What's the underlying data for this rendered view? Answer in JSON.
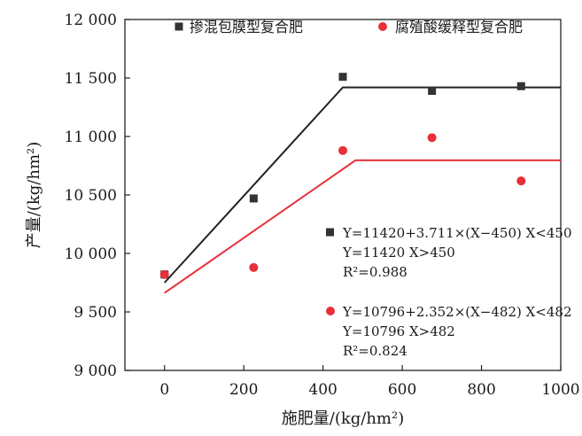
{
  "chart_data": {
    "type": "scatter",
    "xlabel": "施肥量/(kg/hm²)",
    "ylabel": "产量/(kg/hm²)",
    "xlim": [
      -100,
      1000
    ],
    "ylim": [
      9000,
      12000
    ],
    "x_ticks": [
      0,
      200,
      400,
      600,
      800,
      1000
    ],
    "y_ticks": [
      9000,
      9500,
      10000,
      10500,
      11000,
      11500,
      12000
    ],
    "x_tick_labels": [
      "0",
      "200",
      "400",
      "600",
      "800",
      "1000"
    ],
    "y_tick_labels": [
      "9 000",
      "9 500",
      "10 000",
      "10 500",
      "11 000",
      "11 500",
      "12 000"
    ],
    "grid": false,
    "legend_position": "top",
    "series": [
      {
        "name": "掺混包膜型复合肥",
        "marker": "square",
        "color": "#333333",
        "x": [
          0,
          225,
          450,
          675,
          900
        ],
        "y": [
          9820,
          10470,
          11510,
          11390,
          11430
        ],
        "fit": {
          "type": "linear-plateau",
          "slope": 3.711,
          "breakpoint": 450,
          "plateau": 11420,
          "x_range": [
            0,
            1000
          ],
          "color": "#222222",
          "equations": [
            "Y=11420+3.711×(X−450) X<450",
            "Y=11420 X>450",
            "R²=0.988"
          ]
        }
      },
      {
        "name": "腐殖酸缓释型复合肥",
        "marker": "circle",
        "color": "#e8303a",
        "x": [
          0,
          225,
          450,
          675,
          900
        ],
        "y": [
          9820,
          9880,
          10880,
          10990,
          10620
        ],
        "fit": {
          "type": "linear-plateau",
          "slope": 2.352,
          "breakpoint": 482,
          "plateau": 10796,
          "x_range": [
            0,
            1000
          ],
          "color": "#e8303a",
          "equations": [
            "Y=10796+2.352×(X−482) X<482",
            "Y=10796 X>482",
            "R²=0.824"
          ]
        }
      }
    ]
  }
}
